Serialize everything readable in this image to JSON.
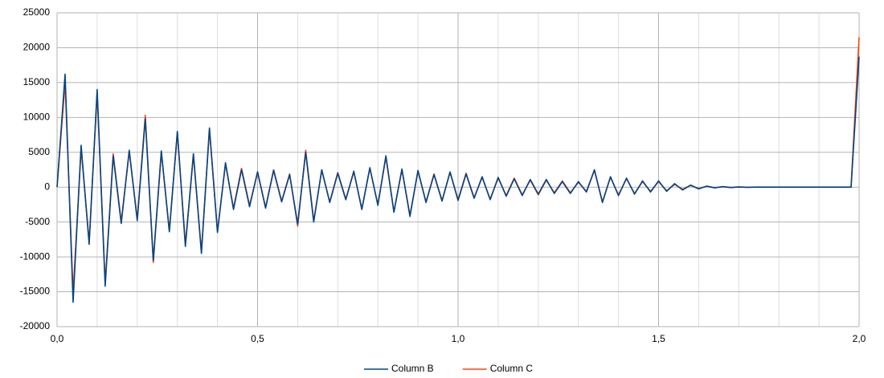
{
  "chart_data": {
    "type": "line",
    "x": [
      0,
      0.02,
      0.04,
      0.06,
      0.08,
      0.1,
      0.12,
      0.14,
      0.16,
      0.18,
      0.2,
      0.22,
      0.24,
      0.26,
      0.28,
      0.3,
      0.32,
      0.34,
      0.36,
      0.38,
      0.4,
      0.42,
      0.44,
      0.46,
      0.48,
      0.5,
      0.52,
      0.54,
      0.56,
      0.58,
      0.6,
      0.62,
      0.64,
      0.66,
      0.68,
      0.7,
      0.72,
      0.74,
      0.76,
      0.78,
      0.8,
      0.82,
      0.84,
      0.86,
      0.88,
      0.9,
      0.92,
      0.94,
      0.96,
      0.98,
      1,
      1.02,
      1.04,
      1.06,
      1.08,
      1.1,
      1.12,
      1.14,
      1.16,
      1.18,
      1.2,
      1.22,
      1.24,
      1.26,
      1.28,
      1.3,
      1.32,
      1.34,
      1.36,
      1.38,
      1.4,
      1.42,
      1.44,
      1.46,
      1.48,
      1.5,
      1.52,
      1.54,
      1.56,
      1.58,
      1.6,
      1.62,
      1.64,
      1.66,
      1.68,
      1.7,
      1.72,
      1.74,
      1.76,
      1.78,
      1.8,
      1.82,
      1.84,
      1.86,
      1.88,
      1.9,
      1.92,
      1.94,
      1.96,
      1.98,
      2
    ],
    "series": [
      {
        "name": "Column B",
        "color": "#004586",
        "values": [
          0,
          16200,
          -16500,
          6000,
          -8200,
          14000,
          -14200,
          4500,
          -5200,
          5300,
          -4800,
          9800,
          -10500,
          5200,
          -6400,
          8000,
          -8500,
          4800,
          -9500,
          8500,
          -6500,
          3500,
          -3200,
          2500,
          -2800,
          2200,
          -3000,
          2400,
          -2100,
          1800,
          -5300,
          5000,
          -5000,
          2500,
          -2200,
          2000,
          -1800,
          2300,
          -3200,
          2800,
          -2600,
          4500,
          -3600,
          2600,
          -4200,
          2400,
          -2200,
          1800,
          -2000,
          2200,
          -1900,
          1900,
          -1600,
          1500,
          -1800,
          1400,
          -1300,
          1200,
          -1200,
          1100,
          -1000,
          1100,
          -900,
          800,
          -900,
          800,
          -700,
          2500,
          -2200,
          1500,
          -1200,
          1300,
          -1000,
          900,
          -700,
          900,
          -600,
          500,
          -400,
          300,
          -250,
          150,
          -100,
          80,
          -50,
          30,
          -20,
          10,
          0,
          0,
          0,
          0,
          0,
          0,
          0,
          0,
          0,
          0,
          0,
          0,
          18700
        ]
      },
      {
        "name": "Column C",
        "color": "#ff420e",
        "values": [
          0,
          15000,
          -15200,
          5500,
          -7800,
          13500,
          -13800,
          4800,
          -5000,
          5100,
          -4600,
          10300,
          -10800,
          5000,
          -6200,
          7800,
          -8200,
          4600,
          -9200,
          8200,
          -6300,
          3300,
          -3000,
          2700,
          -2600,
          2100,
          -2900,
          2500,
          -2000,
          1900,
          -5600,
          5300,
          -4800,
          2400,
          -2100,
          2100,
          -1700,
          2200,
          -3100,
          2700,
          -2500,
          4300,
          -3500,
          2500,
          -4000,
          2300,
          -2100,
          1900,
          -1900,
          2100,
          -1800,
          2000,
          -1500,
          1400,
          -1700,
          1300,
          -1200,
          1300,
          -1100,
          1000,
          -1100,
          1000,
          -800,
          900,
          -800,
          700,
          -600,
          2400,
          -2100,
          1400,
          -1100,
          1200,
          -900,
          800,
          -600,
          800,
          -500,
          400,
          -300,
          250,
          -200,
          120,
          -80,
          60,
          -40,
          20,
          -10,
          0,
          0,
          0,
          0,
          0,
          0,
          0,
          0,
          0,
          0,
          0,
          0,
          0,
          21500
        ]
      }
    ],
    "xlim": [
      0,
      2
    ],
    "ylim": [
      -20000,
      25000
    ],
    "xticks": [
      {
        "value": 0,
        "label": "0,0"
      },
      {
        "value": 0.5,
        "label": "0,5"
      },
      {
        "value": 1,
        "label": "1,0"
      },
      {
        "value": 1.5,
        "label": "1,5"
      },
      {
        "value": 2,
        "label": "2,0"
      }
    ],
    "x_minor_grid": [
      0.1,
      0.2,
      0.3,
      0.4,
      0.6,
      0.7,
      0.8,
      0.9,
      1.1,
      1.2,
      1.3,
      1.4,
      1.6,
      1.7,
      1.8,
      1.9
    ],
    "yticks": [
      -20000,
      -15000,
      -10000,
      -5000,
      0,
      5000,
      10000,
      15000,
      20000,
      25000
    ],
    "grid": true,
    "legend": "bottom"
  }
}
